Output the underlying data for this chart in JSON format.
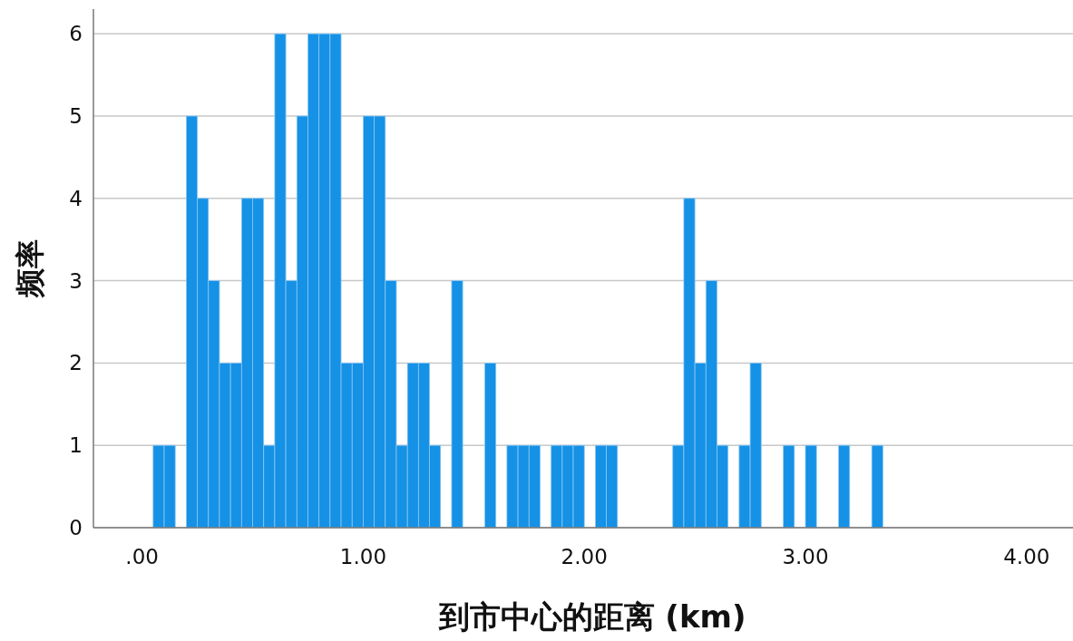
{
  "chart_data": {
    "type": "histogram",
    "xlabel": "到市中心的距离 (km)",
    "ylabel": "频率",
    "color": "#1591e6",
    "bins": [
      0.05,
      0.1,
      0.15,
      0.2,
      0.25,
      0.3,
      0.35,
      0.4,
      0.45,
      0.5,
      0.55,
      0.6,
      0.65,
      0.7,
      0.75,
      0.8,
      0.85,
      0.9,
      0.95,
      1.0,
      1.05,
      1.1,
      1.15,
      1.2,
      1.25,
      1.3,
      1.35,
      1.4,
      1.45,
      1.5,
      1.55,
      1.6,
      1.65,
      1.7,
      1.75,
      1.8,
      1.85,
      1.9,
      1.95,
      2.0,
      2.05,
      2.1,
      2.15,
      2.2,
      2.25,
      2.3,
      2.35,
      2.4,
      2.45,
      2.5,
      2.55,
      2.6,
      2.65,
      2.7,
      2.75,
      2.8,
      2.85,
      2.9,
      2.95,
      3.0,
      3.05,
      3.1,
      3.15,
      3.2,
      3.25,
      3.3,
      3.35
    ],
    "values": [
      1,
      1,
      0,
      5,
      4,
      3,
      2,
      2,
      4,
      4,
      1,
      6,
      3,
      5,
      6,
      6,
      6,
      2,
      2,
      5,
      5,
      3,
      1,
      2,
      2,
      1,
      0,
      3,
      0,
      0,
      2,
      0,
      1,
      1,
      1,
      0,
      1,
      1,
      1,
      0,
      1,
      1,
      0,
      0,
      0,
      0,
      0,
      1,
      4,
      2,
      3,
      1,
      0,
      1,
      2,
      0,
      0,
      1,
      0,
      1,
      0,
      0,
      1,
      0,
      0,
      1
    ],
    "xlim": [
      -0.22,
      4.21
    ],
    "ylim": [
      0,
      6.3
    ],
    "xticks": [
      {
        "value": 0,
        "label": ".00"
      },
      {
        "value": 1,
        "label": "1.00"
      },
      {
        "value": 2,
        "label": "2.00"
      },
      {
        "value": 3,
        "label": "3.00"
      },
      {
        "value": 4,
        "label": "4.00"
      }
    ],
    "yticks": [
      0,
      1,
      2,
      3,
      4,
      5,
      6
    ],
    "grid": "y"
  }
}
